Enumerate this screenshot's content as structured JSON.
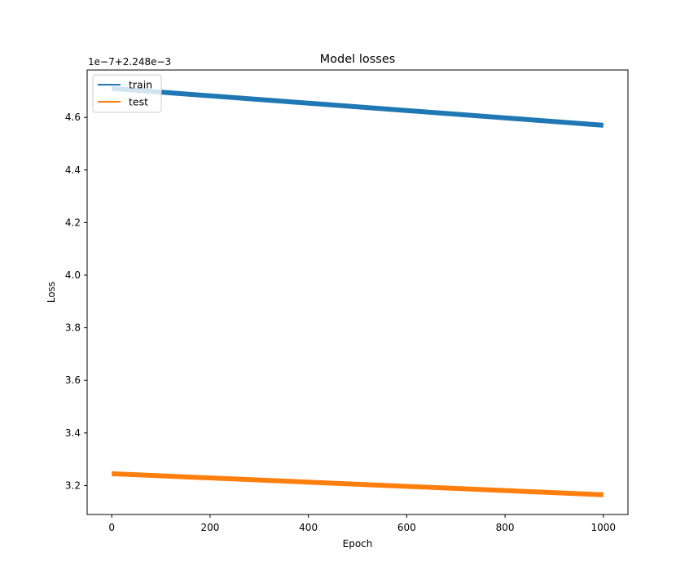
{
  "chart_data": {
    "type": "line",
    "title": "Model losses",
    "xlabel": "Epoch",
    "ylabel": "Loss",
    "offset_text": "1e−7+2.248e−3",
    "xlim": [
      -50,
      1050
    ],
    "ylim": [
      3.09,
      4.78
    ],
    "x_ticks": [
      0,
      200,
      400,
      600,
      800,
      1000
    ],
    "x_tick_labels": [
      "0",
      "200",
      "400",
      "600",
      "800",
      "1000"
    ],
    "y_ticks": [
      3.2,
      3.4,
      3.6,
      3.8,
      4.0,
      4.2,
      4.4,
      4.6
    ],
    "y_tick_labels": [
      "3.2",
      "3.4",
      "3.6",
      "3.8",
      "4.0",
      "4.2",
      "4.4",
      "4.6"
    ],
    "grid": false,
    "legend_position": "upper-left",
    "series": [
      {
        "name": "train",
        "color": "#1f77b4",
        "x": [
          0,
          1000
        ],
        "y": [
          4.71,
          4.57
        ]
      },
      {
        "name": "test",
        "color": "#ff7f0e",
        "x": [
          0,
          1000
        ],
        "y": [
          3.245,
          3.165
        ]
      }
    ]
  }
}
